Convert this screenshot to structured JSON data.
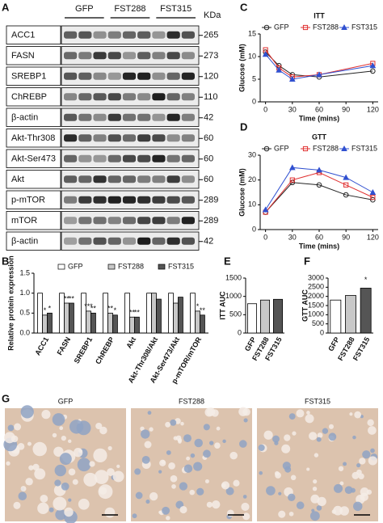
{
  "blot": {
    "panel": "A",
    "groups": [
      "GFP",
      "FST288",
      "FST315"
    ],
    "unit": "KDa",
    "rows": [
      {
        "name": "ACC1",
        "kda": "265"
      },
      {
        "name": "FASN",
        "kda": "273"
      },
      {
        "name": "SREBP1",
        "kda": "120"
      },
      {
        "name": "ChREBP",
        "kda": "110"
      },
      {
        "name": "β-actin",
        "kda": "42"
      },
      {
        "name": "Akt-Thr308",
        "kda": "60"
      },
      {
        "name": "Akt-Ser473",
        "kda": "60"
      },
      {
        "name": "Akt",
        "kda": "60"
      },
      {
        "name": "p-mTOR",
        "kda": "289"
      },
      {
        "name": "mTOR",
        "kda": "289"
      },
      {
        "name": "β-actin",
        "kda": "42"
      }
    ]
  },
  "histology": {
    "panel": "G",
    "labels": [
      "GFP",
      "FST288",
      "FST315"
    ]
  },
  "chart_data": [
    {
      "type": "line",
      "panel": "C",
      "title": "ITT",
      "xlabel": "Time (mins)",
      "ylabel": "Glucose (mM)",
      "x": [
        0,
        15,
        30,
        60,
        120
      ],
      "xlim": [
        -6,
        126
      ],
      "xticks": [
        0,
        30,
        60,
        90,
        120
      ],
      "ylim": [
        0,
        15
      ],
      "yticks": [
        0,
        5,
        10,
        15
      ],
      "series": [
        {
          "name": "GFP",
          "color": "#222222",
          "marker": "circle",
          "values": [
            11,
            8,
            6,
            5.5,
            6.8
          ]
        },
        {
          "name": "FST288",
          "color": "#e03030",
          "marker": "square",
          "values": [
            11.5,
            7.5,
            5.5,
            6,
            8.5
          ]
        },
        {
          "name": "FST315",
          "color": "#3050d0",
          "marker": "triangle",
          "values": [
            10.5,
            7,
            5,
            6,
            8
          ]
        }
      ]
    },
    {
      "type": "line",
      "panel": "D",
      "title": "GTT",
      "xlabel": "Time (mins)",
      "ylabel": "Glucose (mM)",
      "x": [
        0,
        30,
        60,
        90,
        120
      ],
      "xlim": [
        -6,
        126
      ],
      "xticks": [
        0,
        30,
        60,
        90,
        120
      ],
      "ylim": [
        0,
        30
      ],
      "yticks": [
        0,
        10,
        20,
        30
      ],
      "series": [
        {
          "name": "GFP",
          "color": "#222222",
          "marker": "circle",
          "values": [
            7,
            19,
            18,
            14,
            12
          ]
        },
        {
          "name": "FST288",
          "color": "#e03030",
          "marker": "square",
          "values": [
            7,
            20,
            23,
            18,
            13
          ]
        },
        {
          "name": "FST315",
          "color": "#3050d0",
          "marker": "triangle",
          "values": [
            8,
            25,
            24,
            21,
            15
          ]
        }
      ]
    },
    {
      "type": "bar",
      "panel": "B",
      "ylabel": "Relative protein expression",
      "categories": [
        "ACC1",
        "FASN",
        "SREBP1",
        "ChREBP",
        "Akt",
        "Akt-Thr308/Akt",
        "Akt-Ser473/Akt",
        "p-mTOR/mTOR"
      ],
      "ylim": [
        0,
        1.5
      ],
      "yticks": [
        {
          "value": 0,
          "label": "0.0"
        },
        {
          "value": 0.5,
          "label": "0.5"
        },
        {
          "value": 1,
          "label": "1.0"
        },
        {
          "value": 1.5,
          "label": "1.5"
        }
      ],
      "series": [
        {
          "name": "GFP",
          "color": "#ffffff",
          "values": [
            1,
            1,
            1,
            1,
            1,
            1,
            1,
            1
          ]
        },
        {
          "name": "FST288",
          "color": "#c8c8c8",
          "values": [
            0.45,
            0.75,
            0.55,
            0.5,
            0.4,
            1.0,
            0.75,
            0.55
          ],
          "significance": [
            "*",
            "**",
            "***",
            "**",
            "**",
            null,
            null,
            "*"
          ]
        },
        {
          "name": "FST315",
          "color": "#555555",
          "values": [
            0.5,
            0.75,
            0.5,
            0.45,
            0.4,
            0.85,
            0.9,
            0.45
          ],
          "significance": [
            "*",
            "**",
            "**",
            "*",
            "**",
            null,
            null,
            "**"
          ]
        }
      ]
    },
    {
      "type": "bar",
      "panel": "E",
      "ylabel": "ITT  AUC",
      "categories": [
        "GFP",
        "FST288",
        "FST315"
      ],
      "values": [
        800,
        900,
        920
      ],
      "colors": [
        "#ffffff",
        "#c8c8c8",
        "#555555"
      ],
      "ylim": [
        0,
        1500
      ],
      "yticks": [
        0,
        500,
        1000,
        1500
      ]
    },
    {
      "type": "bar",
      "panel": "F",
      "ylabel": "GTT AUC",
      "categories": [
        "GFP",
        "FST288",
        "FST315"
      ],
      "values": [
        1800,
        2050,
        2450
      ],
      "colors": [
        "#ffffff",
        "#c8c8c8",
        "#555555"
      ],
      "significance": [
        null,
        null,
        "*"
      ],
      "ylim": [
        0,
        3000
      ],
      "yticks": [
        0,
        500,
        1000,
        1500,
        2000,
        2500,
        3000
      ]
    }
  ]
}
